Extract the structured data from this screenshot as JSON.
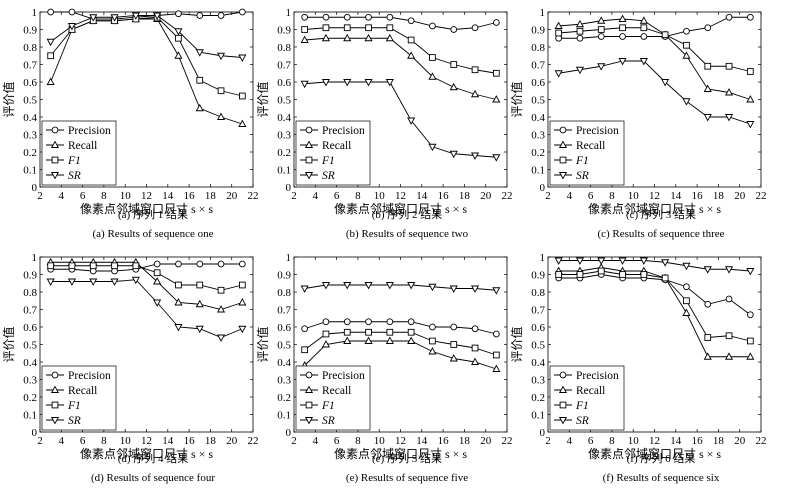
{
  "chart_data": [
    {
      "type": "line",
      "caption_zh": "(a) 序列 1 结果",
      "caption_en": "(a) Results of sequence one",
      "xlabel": "像素点邻域窗口尺寸 s × s",
      "ylabel": "评价值",
      "xlim": [
        2,
        22
      ],
      "ylim": [
        0,
        1
      ],
      "xticks": [
        2,
        4,
        6,
        8,
        10,
        12,
        14,
        16,
        18,
        20,
        22
      ],
      "yticks": [
        0,
        0.1,
        0.2,
        0.3,
        0.4,
        0.5,
        0.6,
        0.7,
        0.8,
        0.9,
        1
      ],
      "legend_position": "bottom-left",
      "x": [
        3,
        5,
        7,
        9,
        11,
        13,
        15,
        17,
        19,
        21
      ],
      "series": [
        {
          "name": "Precision",
          "marker": "circle",
          "values": [
            1.0,
            1.0,
            0.96,
            0.96,
            0.97,
            0.98,
            0.99,
            0.98,
            0.98,
            1.0
          ]
        },
        {
          "name": "Recall",
          "marker": "triangle-up",
          "values": [
            0.6,
            0.9,
            0.95,
            0.95,
            0.96,
            0.96,
            0.75,
            0.45,
            0.4,
            0.36
          ]
        },
        {
          "name": "F1",
          "marker": "square",
          "values": [
            0.75,
            0.9,
            0.95,
            0.95,
            0.96,
            0.97,
            0.85,
            0.61,
            0.55,
            0.52
          ]
        },
        {
          "name": "SR",
          "marker": "triangle-down",
          "values": [
            0.83,
            0.92,
            0.97,
            0.97,
            0.98,
            0.98,
            0.89,
            0.77,
            0.75,
            0.74
          ]
        }
      ]
    },
    {
      "type": "line",
      "caption_zh": "(b) 序列 2 结果",
      "caption_en": "(b) Results of sequence two",
      "xlabel": "像素点邻域窗口尺寸 s × s",
      "ylabel": "评价值",
      "xlim": [
        2,
        22
      ],
      "ylim": [
        0,
        1
      ],
      "xticks": [
        2,
        4,
        6,
        8,
        10,
        12,
        14,
        16,
        18,
        20,
        22
      ],
      "yticks": [
        0,
        0.1,
        0.2,
        0.3,
        0.4,
        0.5,
        0.6,
        0.7,
        0.8,
        0.9,
        1
      ],
      "legend_position": "bottom-left",
      "x": [
        3,
        5,
        7,
        9,
        11,
        13,
        15,
        17,
        19,
        21
      ],
      "series": [
        {
          "name": "Precision",
          "marker": "circle",
          "values": [
            0.97,
            0.97,
            0.97,
            0.97,
            0.97,
            0.95,
            0.92,
            0.9,
            0.91,
            0.94
          ]
        },
        {
          "name": "Recall",
          "marker": "triangle-up",
          "values": [
            0.84,
            0.85,
            0.85,
            0.85,
            0.85,
            0.75,
            0.63,
            0.57,
            0.53,
            0.5
          ]
        },
        {
          "name": "F1",
          "marker": "square",
          "values": [
            0.9,
            0.91,
            0.91,
            0.91,
            0.91,
            0.84,
            0.74,
            0.7,
            0.67,
            0.65
          ]
        },
        {
          "name": "SR",
          "marker": "triangle-down",
          "values": [
            0.59,
            0.6,
            0.6,
            0.6,
            0.6,
            0.38,
            0.23,
            0.19,
            0.18,
            0.17
          ]
        }
      ]
    },
    {
      "type": "line",
      "caption_zh": "(c) 序列 3 结果",
      "caption_en": "(c) Results of sequence three",
      "xlabel": "像素点邻域窗口尺寸 s × s",
      "ylabel": "评价值",
      "xlim": [
        2,
        22
      ],
      "ylim": [
        0,
        1
      ],
      "xticks": [
        2,
        4,
        6,
        8,
        10,
        12,
        14,
        16,
        18,
        20,
        22
      ],
      "yticks": [
        0,
        0.1,
        0.2,
        0.3,
        0.4,
        0.5,
        0.6,
        0.7,
        0.8,
        0.9,
        1
      ],
      "legend_position": "bottom-left",
      "x": [
        3,
        5,
        7,
        9,
        11,
        13,
        15,
        17,
        19,
        21
      ],
      "series": [
        {
          "name": "Precision",
          "marker": "circle",
          "values": [
            0.85,
            0.85,
            0.86,
            0.86,
            0.86,
            0.86,
            0.89,
            0.91,
            0.97,
            0.97
          ]
        },
        {
          "name": "Recall",
          "marker": "triangle-up",
          "values": [
            0.92,
            0.93,
            0.95,
            0.96,
            0.95,
            0.87,
            0.75,
            0.56,
            0.54,
            0.5
          ]
        },
        {
          "name": "F1",
          "marker": "square",
          "values": [
            0.88,
            0.89,
            0.9,
            0.91,
            0.91,
            0.87,
            0.81,
            0.69,
            0.69,
            0.66
          ]
        },
        {
          "name": "SR",
          "marker": "triangle-down",
          "values": [
            0.65,
            0.67,
            0.69,
            0.72,
            0.72,
            0.6,
            0.49,
            0.4,
            0.4,
            0.36
          ]
        }
      ]
    },
    {
      "type": "line",
      "caption_zh": "(d) 序列 4 结果",
      "caption_en": "(d) Results of sequence four",
      "xlabel": "像素点邻域窗口尺寸 s × s",
      "ylabel": "评价值",
      "xlim": [
        2,
        22
      ],
      "ylim": [
        0,
        1
      ],
      "xticks": [
        2,
        4,
        6,
        8,
        10,
        12,
        14,
        16,
        18,
        20,
        22
      ],
      "yticks": [
        0,
        0.1,
        0.2,
        0.3,
        0.4,
        0.5,
        0.6,
        0.7,
        0.8,
        0.9,
        1
      ],
      "legend_position": "bottom-left",
      "x": [
        3,
        5,
        7,
        9,
        11,
        13,
        15,
        17,
        19,
        21
      ],
      "series": [
        {
          "name": "Precision",
          "marker": "circle",
          "values": [
            0.93,
            0.93,
            0.92,
            0.92,
            0.93,
            0.96,
            0.96,
            0.96,
            0.96,
            0.96
          ]
        },
        {
          "name": "Recall",
          "marker": "triangle-up",
          "values": [
            0.97,
            0.97,
            0.97,
            0.97,
            0.97,
            0.86,
            0.74,
            0.73,
            0.7,
            0.74
          ]
        },
        {
          "name": "F1",
          "marker": "square",
          "values": [
            0.95,
            0.95,
            0.95,
            0.95,
            0.95,
            0.91,
            0.84,
            0.84,
            0.81,
            0.84
          ]
        },
        {
          "name": "SR",
          "marker": "triangle-down",
          "values": [
            0.86,
            0.86,
            0.86,
            0.86,
            0.87,
            0.74,
            0.6,
            0.59,
            0.54,
            0.59
          ]
        }
      ]
    },
    {
      "type": "line",
      "caption_zh": "(e) 序列 5 结果",
      "caption_en": "(e) Results of sequence five",
      "xlabel": "像素点邻域窗口尺寸 s × s",
      "ylabel": "评价值",
      "xlim": [
        2,
        22
      ],
      "ylim": [
        0,
        1
      ],
      "xticks": [
        2,
        4,
        6,
        8,
        10,
        12,
        14,
        16,
        18,
        20,
        22
      ],
      "yticks": [
        0,
        0.1,
        0.2,
        0.3,
        0.4,
        0.5,
        0.6,
        0.7,
        0.8,
        0.9,
        1
      ],
      "legend_position": "bottom-left",
      "x": [
        3,
        5,
        7,
        9,
        11,
        13,
        15,
        17,
        19,
        21
      ],
      "series": [
        {
          "name": "Precision",
          "marker": "circle",
          "values": [
            0.59,
            0.63,
            0.63,
            0.63,
            0.63,
            0.63,
            0.6,
            0.6,
            0.59,
            0.56
          ]
        },
        {
          "name": "Recall",
          "marker": "triangle-up",
          "values": [
            0.38,
            0.5,
            0.52,
            0.52,
            0.52,
            0.52,
            0.46,
            0.42,
            0.4,
            0.36
          ]
        },
        {
          "name": "F1",
          "marker": "square",
          "values": [
            0.47,
            0.56,
            0.57,
            0.57,
            0.57,
            0.57,
            0.52,
            0.5,
            0.48,
            0.44
          ]
        },
        {
          "name": "SR",
          "marker": "triangle-down",
          "values": [
            0.82,
            0.84,
            0.84,
            0.84,
            0.84,
            0.84,
            0.83,
            0.82,
            0.82,
            0.81
          ]
        }
      ]
    },
    {
      "type": "line",
      "caption_zh": "(f) 序列 6 结果",
      "caption_en": "(f) Results of sequence six",
      "xlabel": "像素点邻域窗口尺寸 s × s",
      "ylabel": "评价值",
      "xlim": [
        2,
        22
      ],
      "ylim": [
        0,
        1
      ],
      "xticks": [
        2,
        4,
        6,
        8,
        10,
        12,
        14,
        16,
        18,
        20,
        22
      ],
      "yticks": [
        0,
        0.1,
        0.2,
        0.3,
        0.4,
        0.5,
        0.6,
        0.7,
        0.8,
        0.9,
        1
      ],
      "legend_position": "bottom-left",
      "x": [
        3,
        5,
        7,
        9,
        11,
        13,
        15,
        17,
        19,
        21
      ],
      "series": [
        {
          "name": "Precision",
          "marker": "circle",
          "values": [
            0.88,
            0.88,
            0.9,
            0.88,
            0.88,
            0.87,
            0.83,
            0.73,
            0.76,
            0.67
          ]
        },
        {
          "name": "Recall",
          "marker": "triangle-up",
          "values": [
            0.92,
            0.92,
            0.94,
            0.92,
            0.92,
            0.88,
            0.68,
            0.43,
            0.43,
            0.43
          ]
        },
        {
          "name": "F1",
          "marker": "square",
          "values": [
            0.9,
            0.9,
            0.92,
            0.9,
            0.9,
            0.88,
            0.75,
            0.54,
            0.55,
            0.52
          ]
        },
        {
          "name": "SR",
          "marker": "triangle-down",
          "values": [
            0.98,
            0.98,
            0.98,
            0.98,
            0.98,
            0.97,
            0.95,
            0.93,
            0.93,
            0.92
          ]
        }
      ]
    }
  ]
}
